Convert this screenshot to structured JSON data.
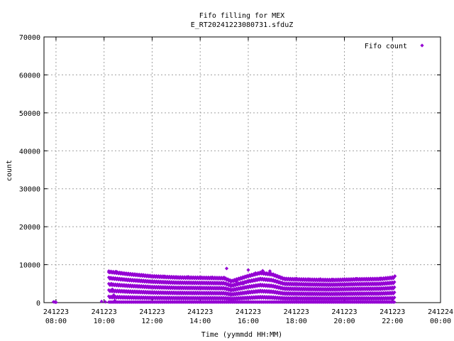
{
  "chart_data": {
    "type": "scatter",
    "title": "Fifo filling for MEX",
    "subtitle": "E_RT20241223080731.sfduZ",
    "xlabel": "Time (yymmdd HH:MM)",
    "ylabel": "count",
    "grid": true,
    "legend_position": "top-right",
    "marker_color": "#9400d3",
    "x_range_hours": [
      7.5,
      24.0
    ],
    "ylim": [
      0,
      70000
    ],
    "y_ticks": [
      "0",
      "10000",
      "20000",
      "30000",
      "40000",
      "50000",
      "60000",
      "70000"
    ],
    "x_ticks": [
      {
        "hour": 8,
        "date": "241223",
        "time": "08:00"
      },
      {
        "hour": 10,
        "date": "241223",
        "time": "10:00"
      },
      {
        "hour": 12,
        "date": "241223",
        "time": "12:00"
      },
      {
        "hour": 14,
        "date": "241223",
        "time": "14:00"
      },
      {
        "hour": 16,
        "date": "241223",
        "time": "16:00"
      },
      {
        "hour": 18,
        "date": "241223",
        "time": "18:00"
      },
      {
        "hour": 20,
        "date": "241223",
        "time": "20:00"
      },
      {
        "hour": 22,
        "date": "241223",
        "time": "22:00"
      },
      {
        "hour": 24,
        "date": "241224",
        "time": "00:00"
      }
    ],
    "series": [
      {
        "name": "Fifo count",
        "points": [
          [
            7.9,
            200
          ],
          [
            7.95,
            150
          ],
          [
            8.0,
            100
          ],
          [
            9.9,
            300
          ],
          [
            10.05,
            200
          ],
          [
            10.2,
            8000
          ],
          [
            10.25,
            6500
          ],
          [
            10.3,
            5000
          ],
          [
            10.35,
            3500
          ],
          [
            10.4,
            2000
          ],
          [
            10.45,
            500
          ],
          [
            10.5,
            8200
          ],
          [
            10.7,
            7800
          ],
          [
            11.0,
            7600
          ],
          [
            11.3,
            7400
          ],
          [
            11.6,
            7200
          ],
          [
            12.0,
            7000
          ],
          [
            12.5,
            6900
          ],
          [
            13.0,
            6800
          ],
          [
            13.5,
            6800
          ],
          [
            14.0,
            6700
          ],
          [
            14.5,
            6700
          ],
          [
            15.0,
            6600
          ],
          [
            15.1,
            9000
          ],
          [
            15.5,
            5500
          ],
          [
            15.8,
            5000
          ],
          [
            16.0,
            8600
          ],
          [
            16.3,
            7800
          ],
          [
            16.6,
            8400
          ],
          [
            16.9,
            8300
          ],
          [
            17.2,
            7000
          ],
          [
            17.5,
            6400
          ],
          [
            18.0,
            6300
          ],
          [
            18.5,
            6200
          ],
          [
            19.0,
            6200
          ],
          [
            19.5,
            6100
          ],
          [
            20.0,
            6200
          ],
          [
            20.5,
            6300
          ],
          [
            21.0,
            6200
          ],
          [
            21.5,
            6400
          ],
          [
            21.9,
            6600
          ],
          [
            22.1,
            7000
          ]
        ],
        "band": {
          "start_hour": 10.2,
          "end_hour": 22.1,
          "rows": 6,
          "peak_profile": [
            [
              10.2,
              8300
            ],
            [
              11.0,
              7700
            ],
            [
              12.0,
              7100
            ],
            [
              13.0,
              6800
            ],
            [
              14.0,
              6700
            ],
            [
              15.0,
              6600
            ],
            [
              15.3,
              5800
            ],
            [
              16.0,
              7200
            ],
            [
              16.5,
              8000
            ],
            [
              17.0,
              7600
            ],
            [
              17.5,
              6400
            ],
            [
              18.5,
              6200
            ],
            [
              19.5,
              6100
            ],
            [
              20.5,
              6300
            ],
            [
              21.5,
              6400
            ],
            [
              22.1,
              6800
            ]
          ]
        }
      }
    ]
  }
}
